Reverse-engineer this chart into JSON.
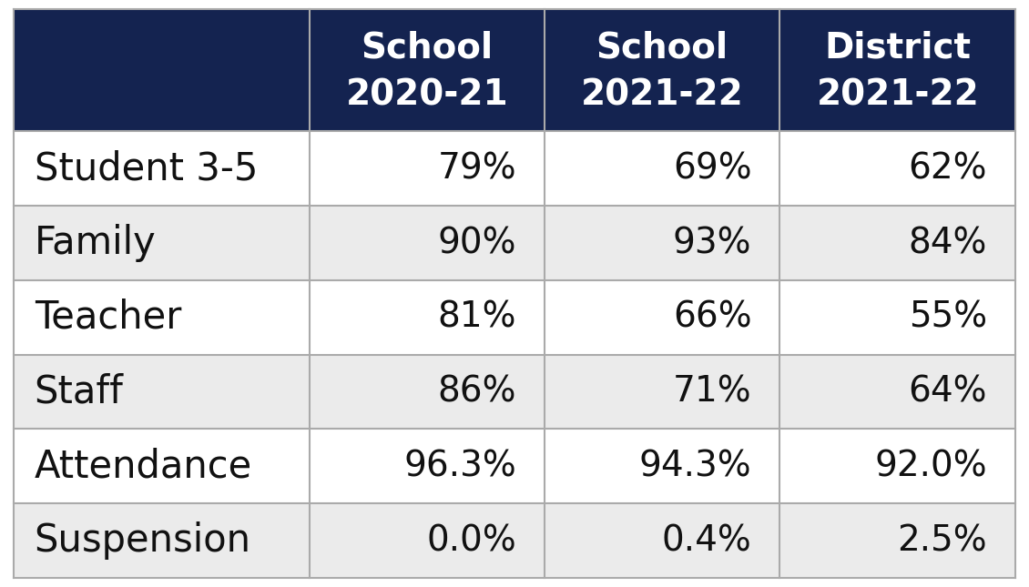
{
  "header_bg_color": "#142350",
  "header_text_color": "#ffffff",
  "row_colors": [
    "#ffffff",
    "#ebebeb"
  ],
  "cell_text_color": "#111111",
  "border_color": "#aaaaaa",
  "col_headers": [
    [
      "School",
      "2020-21"
    ],
    [
      "School",
      "2021-22"
    ],
    [
      "District",
      "2021-22"
    ]
  ],
  "row_labels": [
    "Student 3-5",
    "Family",
    "Teacher",
    "Staff",
    "Attendance",
    "Suspension"
  ],
  "data": [
    [
      "79%",
      "69%",
      "62%"
    ],
    [
      "90%",
      "93%",
      "84%"
    ],
    [
      "81%",
      "66%",
      "55%"
    ],
    [
      "86%",
      "71%",
      "64%"
    ],
    [
      "96.3%",
      "94.3%",
      "92.0%"
    ],
    [
      "0.0%",
      "0.4%",
      "2.5%"
    ]
  ],
  "header_fontsize": 28,
  "row_label_fontsize": 30,
  "cell_fontsize": 28,
  "fig_width": 11.3,
  "fig_height": 6.45,
  "dpi": 100
}
